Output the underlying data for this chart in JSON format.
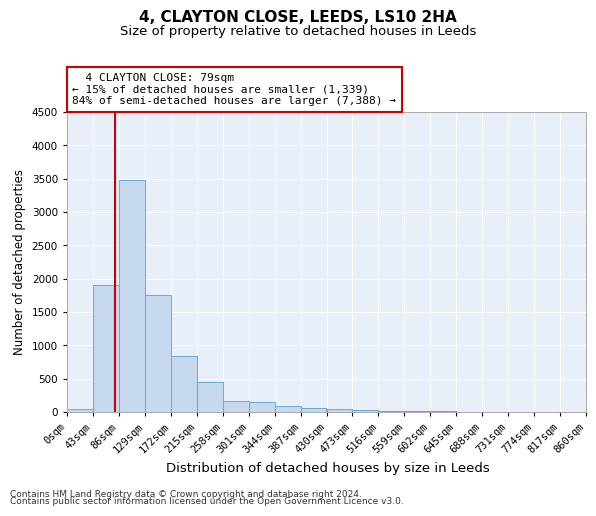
{
  "title": "4, CLAYTON CLOSE, LEEDS, LS10 2HA",
  "subtitle": "Size of property relative to detached houses in Leeds",
  "xlabel": "Distribution of detached houses by size in Leeds",
  "ylabel": "Number of detached properties",
  "property_size": 79,
  "annotation_line1": "4 CLAYTON CLOSE: 79sqm",
  "annotation_line2": "← 15% of detached houses are smaller (1,339)",
  "annotation_line3": "84% of semi-detached houses are larger (7,388) →",
  "footer_line1": "Contains HM Land Registry data © Crown copyright and database right 2024.",
  "footer_line2": "Contains public sector information licensed under the Open Government Licence v3.0.",
  "bin_edges": [
    0,
    43,
    86,
    129,
    172,
    215,
    258,
    301,
    344,
    387,
    430,
    473,
    516,
    559,
    602,
    645,
    688,
    731,
    774,
    817,
    860
  ],
  "bar_heights": [
    50,
    1900,
    3480,
    1760,
    840,
    455,
    165,
    155,
    90,
    65,
    45,
    35,
    22,
    16,
    10,
    7,
    5,
    3,
    2,
    1
  ],
  "bar_color": "#c5d8ee",
  "bar_edge_color": "#6aaad4",
  "vline_color": "#cc0000",
  "annotation_box_color": "#cc0000",
  "plot_bg_color": "#e8eff8",
  "background_color": "#ffffff",
  "grid_color": "#ffffff",
  "ylim": [
    0,
    4500
  ],
  "xlim": [
    0,
    860
  ],
  "title_fontsize": 11,
  "subtitle_fontsize": 9.5,
  "ylabel_fontsize": 8.5,
  "xlabel_fontsize": 9.5,
  "tick_fontsize": 7.5,
  "annotation_fontsize": 8,
  "footer_fontsize": 6.5
}
